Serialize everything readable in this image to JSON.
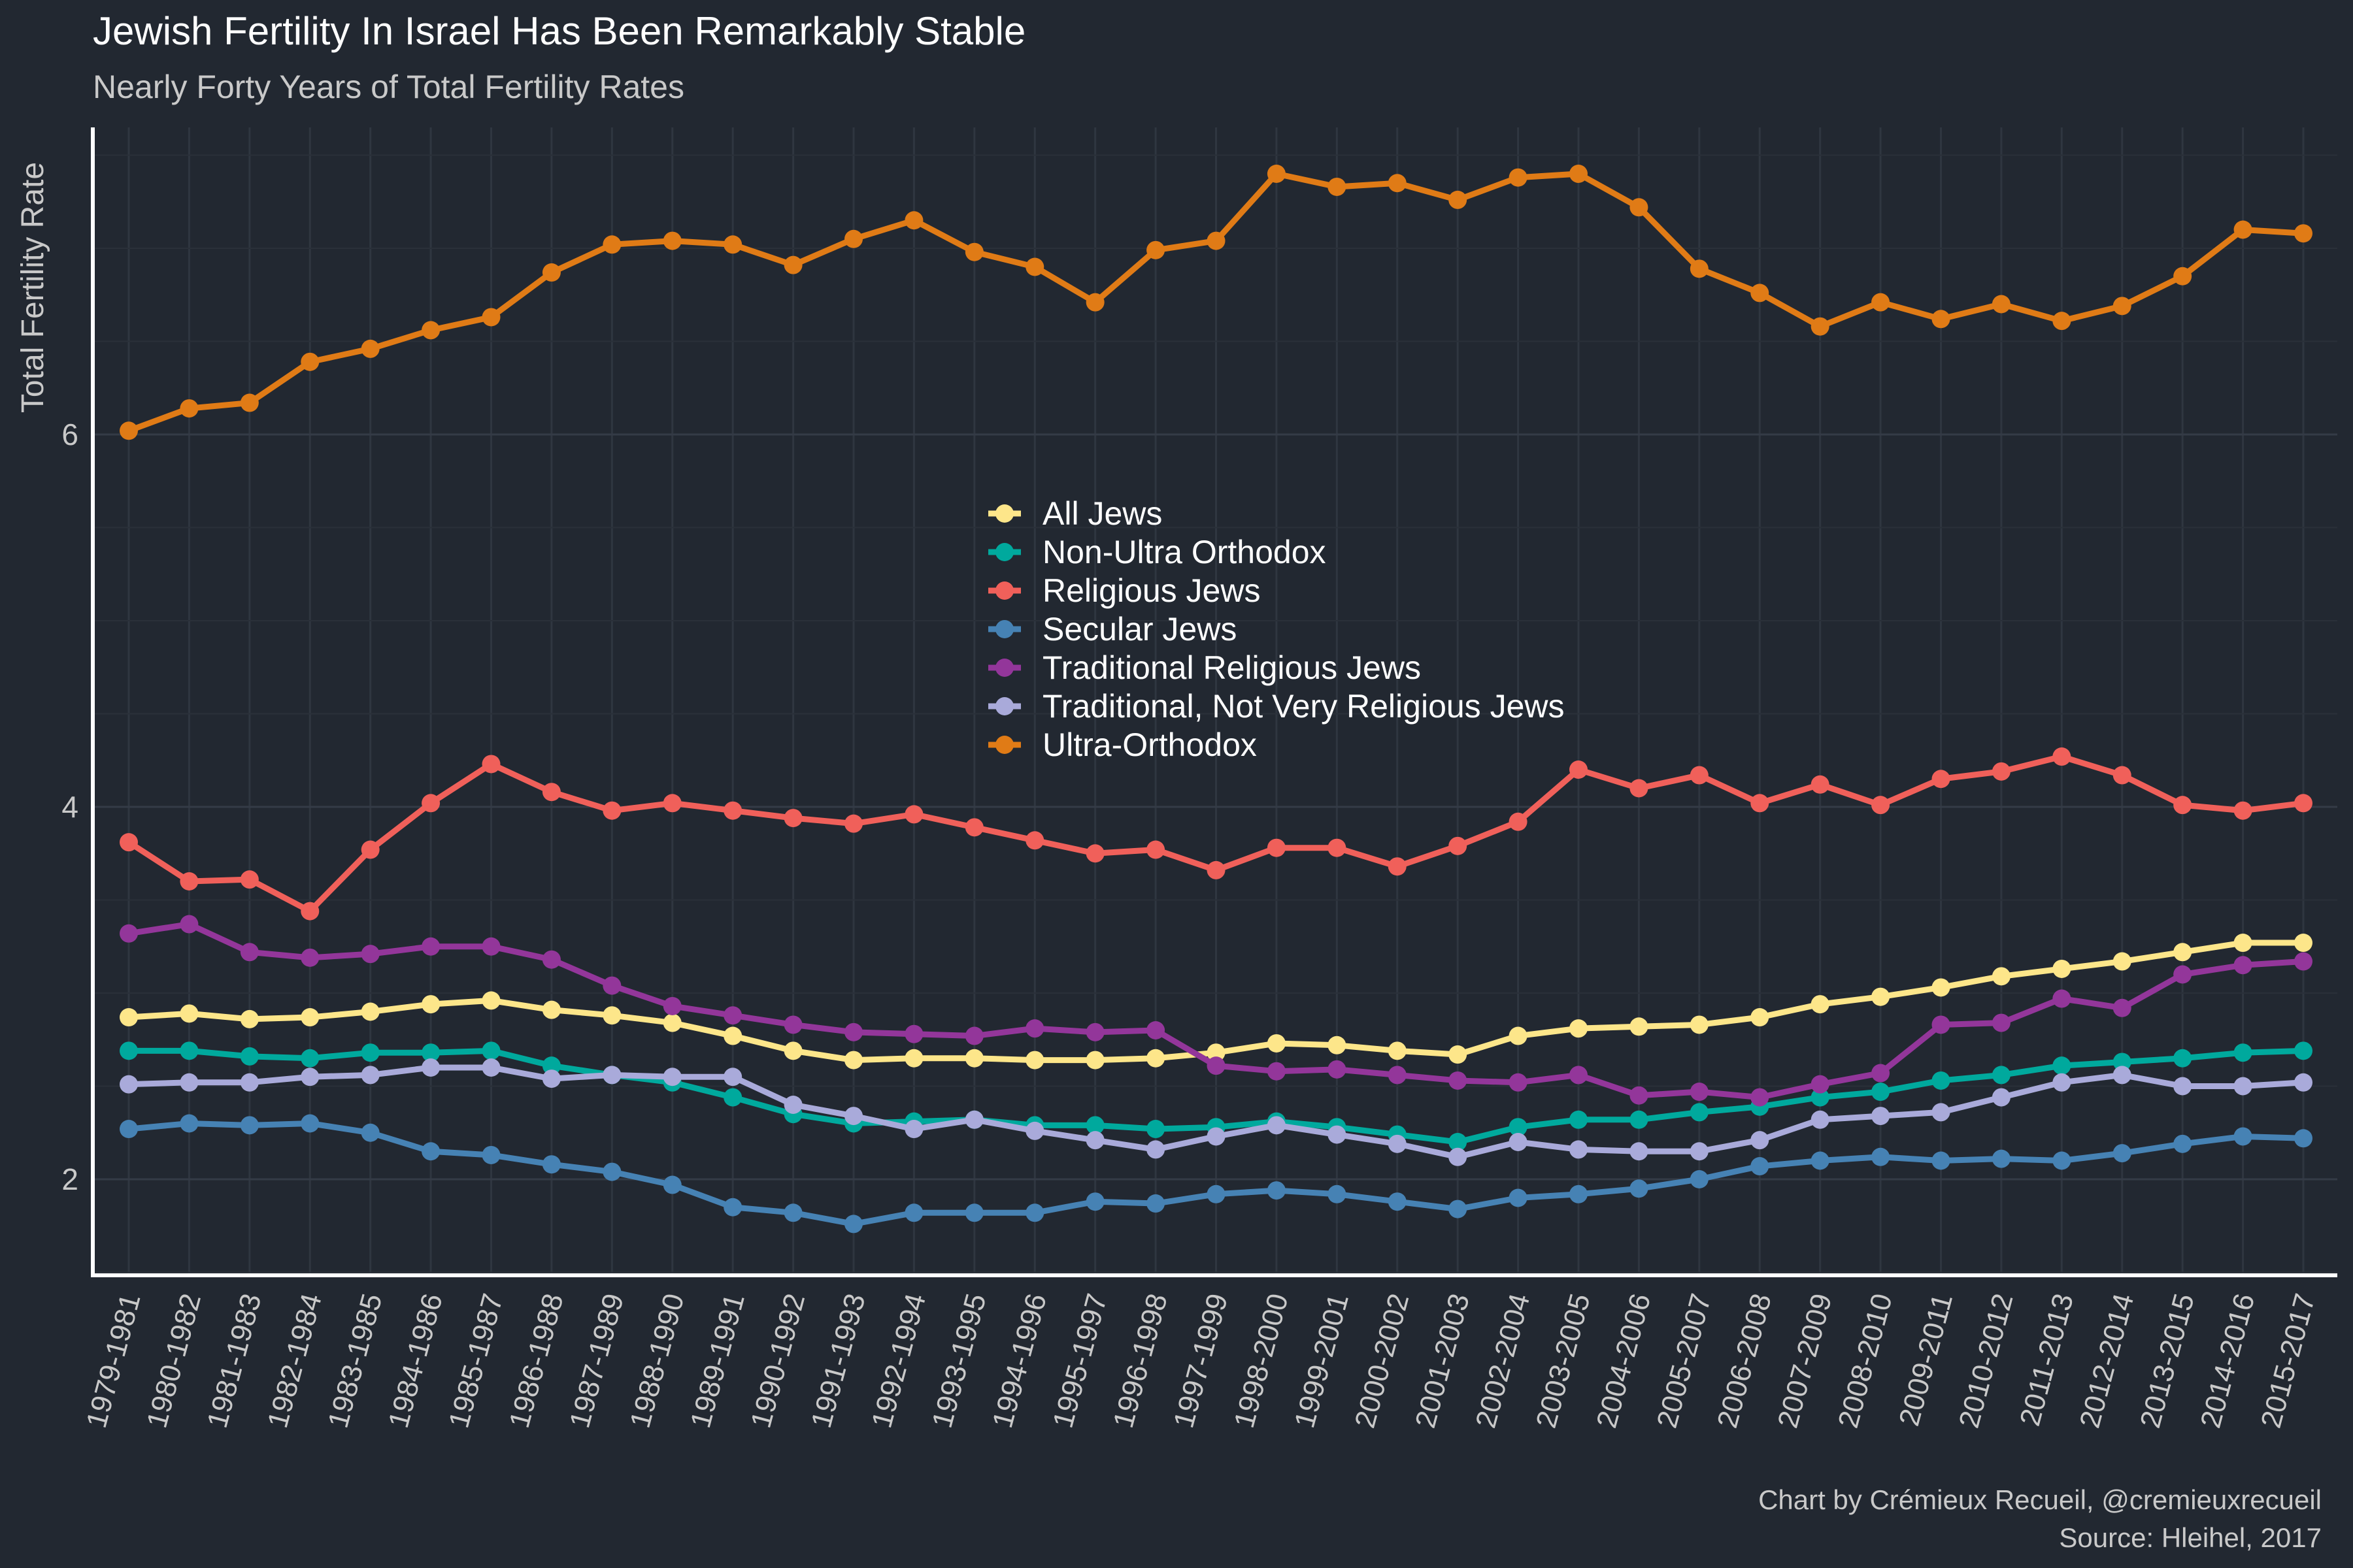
{
  "chart_data": {
    "type": "line",
    "title": "Jewish Fertility In Israel Has Been Remarkably Stable",
    "subtitle": "Nearly Forty Years of Total Fertility Rates",
    "xlabel": "",
    "ylabel": "Total Fertility Rate",
    "ylim": [
      1.5,
      7.5
    ],
    "yticks": [
      2,
      4,
      6
    ],
    "grid": true,
    "legend_position": "center",
    "caption": [
      "Chart by Crémieux Recueil, @cremieuxrecueil",
      "Source: Hleihel, 2017"
    ],
    "categories": [
      "1979-1981",
      "1980-1982",
      "1981-1983",
      "1982-1984",
      "1983-1985",
      "1984-1986",
      "1985-1987",
      "1986-1988",
      "1987-1989",
      "1988-1990",
      "1989-1991",
      "1990-1992",
      "1991-1993",
      "1992-1994",
      "1993-1995",
      "1994-1996",
      "1995-1997",
      "1996-1998",
      "1997-1999",
      "1998-2000",
      "1999-2001",
      "2000-2002",
      "2001-2003",
      "2002-2004",
      "2003-2005",
      "2004-2006",
      "2005-2007",
      "2006-2008",
      "2007-2009",
      "2008-2010",
      "2009-2011",
      "2010-2012",
      "2011-2013",
      "2012-2014",
      "2013-2015",
      "2014-2016",
      "2015-2017"
    ],
    "series": [
      {
        "name": "All Jews",
        "color": "#FDE68A",
        "values": [
          2.87,
          2.89,
          2.86,
          2.87,
          2.9,
          2.94,
          2.96,
          2.91,
          2.88,
          2.84,
          2.77,
          2.69,
          2.64,
          2.65,
          2.65,
          2.64,
          2.64,
          2.65,
          2.68,
          2.73,
          2.72,
          2.69,
          2.67,
          2.77,
          2.81,
          2.82,
          2.83,
          2.87,
          2.94,
          2.98,
          3.03,
          3.09,
          3.13,
          3.17,
          3.22,
          3.27,
          3.27
        ]
      },
      {
        "name": "Non-Ultra Orthodox",
        "color": "#00A99D",
        "values": [
          2.69,
          2.69,
          2.66,
          2.65,
          2.68,
          2.68,
          2.69,
          2.61,
          2.56,
          2.52,
          2.44,
          2.35,
          2.3,
          2.31,
          2.32,
          2.29,
          2.29,
          2.27,
          2.28,
          2.31,
          2.28,
          2.24,
          2.2,
          2.28,
          2.32,
          2.32,
          2.36,
          2.39,
          2.44,
          2.47,
          2.53,
          2.56,
          2.61,
          2.63,
          2.65,
          2.68,
          2.69
        ]
      },
      {
        "name": "Religious Jews",
        "color": "#F0605A",
        "values": [
          3.81,
          3.6,
          3.61,
          3.44,
          3.77,
          4.02,
          4.23,
          4.08,
          3.98,
          4.02,
          3.98,
          3.94,
          3.91,
          3.96,
          3.89,
          3.82,
          3.75,
          3.77,
          3.66,
          3.78,
          3.78,
          3.68,
          3.79,
          3.92,
          4.2,
          4.1,
          4.17,
          4.02,
          4.12,
          4.01,
          4.15,
          4.19,
          4.27,
          4.17,
          4.01,
          3.98,
          4.02
        ]
      },
      {
        "name": "Secular Jews",
        "color": "#4682B4",
        "values": [
          2.27,
          2.3,
          2.29,
          2.3,
          2.25,
          2.15,
          2.13,
          2.08,
          2.04,
          1.97,
          1.85,
          1.82,
          1.76,
          1.82,
          1.82,
          1.82,
          1.88,
          1.87,
          1.92,
          1.94,
          1.92,
          1.88,
          1.84,
          1.9,
          1.92,
          1.95,
          2.0,
          2.07,
          2.1,
          2.12,
          2.1,
          2.11,
          2.1,
          2.14,
          2.19,
          2.23,
          2.22
        ]
      },
      {
        "name": "Traditional Religious Jews",
        "color": "#93369A",
        "values": [
          3.32,
          3.37,
          3.22,
          3.19,
          3.21,
          3.25,
          3.25,
          3.18,
          3.04,
          2.93,
          2.88,
          2.83,
          2.79,
          2.78,
          2.77,
          2.81,
          2.79,
          2.8,
          2.61,
          2.58,
          2.59,
          2.56,
          2.53,
          2.52,
          2.56,
          2.45,
          2.47,
          2.44,
          2.51,
          2.57,
          2.83,
          2.84,
          2.97,
          2.92,
          3.1,
          3.15,
          3.17
        ]
      },
      {
        "name": "Traditional, Not Very Religious Jews",
        "color": "#A9AADA",
        "values": [
          2.51,
          2.52,
          2.52,
          2.55,
          2.56,
          2.6,
          2.6,
          2.54,
          2.56,
          2.55,
          2.55,
          2.4,
          2.34,
          2.27,
          2.32,
          2.26,
          2.21,
          2.16,
          2.23,
          2.29,
          2.24,
          2.19,
          2.12,
          2.2,
          2.16,
          2.15,
          2.15,
          2.21,
          2.32,
          2.34,
          2.36,
          2.44,
          2.52,
          2.56,
          2.5,
          2.5,
          2.52
        ]
      },
      {
        "name": "Ultra-Orthodox",
        "color": "#E07B16",
        "values": [
          6.02,
          6.14,
          6.17,
          6.39,
          6.46,
          6.56,
          6.63,
          6.87,
          7.02,
          7.04,
          7.02,
          6.91,
          7.05,
          7.15,
          6.98,
          6.9,
          6.71,
          6.99,
          7.04,
          7.4,
          7.33,
          7.35,
          7.26,
          7.38,
          7.4,
          7.22,
          6.89,
          6.76,
          6.58,
          6.71,
          6.62,
          6.7,
          6.61,
          6.69,
          6.85,
          7.1,
          7.08
        ]
      }
    ]
  }
}
